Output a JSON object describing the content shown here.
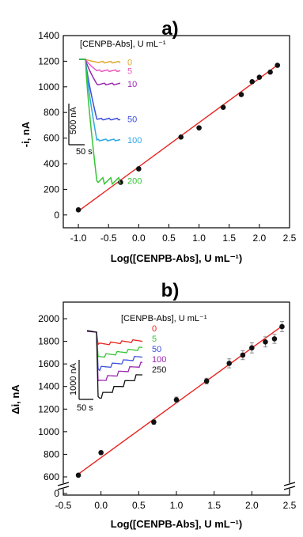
{
  "chart_data": [
    {
      "panel": "a)",
      "type": "scatter",
      "xlabel": "Log([CENPB-Abs], U mL⁻¹)",
      "ylabel": "-i, nA",
      "xlim": [
        -1.25,
        2.5
      ],
      "ylim": [
        -100,
        1400
      ],
      "xticks": [
        "-1.0",
        "-0.5",
        "0.0",
        "0.5",
        "1.0",
        "1.5",
        "2.0",
        "2.5"
      ],
      "yticks": [
        "0",
        "200",
        "400",
        "600",
        "800",
        "1000",
        "1200",
        "1400"
      ],
      "points": [
        {
          "x": -1.0,
          "y": 40
        },
        {
          "x": -0.3,
          "y": 255
        },
        {
          "x": 0.0,
          "y": 360
        },
        {
          "x": 0.7,
          "y": 608
        },
        {
          "x": 1.0,
          "y": 680
        },
        {
          "x": 1.4,
          "y": 840
        },
        {
          "x": 1.7,
          "y": 940
        },
        {
          "x": 1.88,
          "y": 1040
        },
        {
          "x": 2.0,
          "y": 1075
        },
        {
          "x": 2.18,
          "y": 1115
        },
        {
          "x": 2.3,
          "y": 1168
        }
      ],
      "fit": {
        "x": [
          -1.0,
          2.3
        ],
        "y": [
          30,
          1170
        ],
        "color": "#e8231e"
      },
      "inset": {
        "legend_title": "[CENPB-Abs], U mL⁻¹",
        "scale_y": "500 nA",
        "scale_x": "50 s",
        "traces": [
          {
            "label": "0",
            "color": "#e0a82e",
            "level": 0.03
          },
          {
            "label": "5",
            "color": "#e75bc0",
            "level": 0.12
          },
          {
            "label": "10",
            "color": "#9c27b0",
            "level": 0.26
          },
          {
            "label": "50",
            "color": "#3b4fd9",
            "level": 0.63
          },
          {
            "label": "100",
            "color": "#2ea8e6",
            "level": 0.85
          },
          {
            "label": "200",
            "color": "#35c535",
            "level": 1.28
          }
        ]
      }
    },
    {
      "panel": "b)",
      "type": "scatter",
      "xlabel": "Log([CENPB-Abs], U mL⁻¹)",
      "ylabel": "Δi, nA",
      "xlim": [
        -0.5,
        2.5
      ],
      "ylim": [
        0,
        2000
      ],
      "axis_break": true,
      "xticks": [
        "-0.5",
        "0.0",
        "0.5",
        "1.0",
        "1.5",
        "2.0",
        "2.5"
      ],
      "yticks": [
        "0",
        "600",
        "800",
        "1000",
        "1200",
        "1400",
        "1600",
        "1800",
        "2000"
      ],
      "points": [
        {
          "x": -0.3,
          "y": 615,
          "err": 10
        },
        {
          "x": 0.0,
          "y": 815,
          "err": 15
        },
        {
          "x": 0.7,
          "y": 1085,
          "err": 20
        },
        {
          "x": 1.0,
          "y": 1282,
          "err": 25
        },
        {
          "x": 1.4,
          "y": 1448,
          "err": 25
        },
        {
          "x": 1.7,
          "y": 1605,
          "err": 40
        },
        {
          "x": 1.88,
          "y": 1678,
          "err": 40
        },
        {
          "x": 2.0,
          "y": 1742,
          "err": 45
        },
        {
          "x": 2.18,
          "y": 1795,
          "err": 45
        },
        {
          "x": 2.3,
          "y": 1822,
          "err": 40
        },
        {
          "x": 2.4,
          "y": 1930,
          "err": 45
        }
      ],
      "fit": {
        "x": [
          -0.3,
          2.4
        ],
        "y": [
          625,
          1935
        ],
        "color": "#e8231e"
      },
      "inset": {
        "legend_title": "[CENPB-Abs], U mL⁻¹",
        "scale_y": "1000 nA",
        "scale_x": "50 s",
        "traces": [
          {
            "label": "0",
            "color": "#e8231e",
            "level": 0.14
          },
          {
            "label": "5",
            "color": "#35c535",
            "level": 0.28
          },
          {
            "label": "50",
            "color": "#3b4fd9",
            "level": 0.42
          },
          {
            "label": "100",
            "color": "#9c27b0",
            "level": 0.56
          },
          {
            "label": "250",
            "color": "#111111",
            "level": 0.74
          }
        ]
      }
    }
  ]
}
